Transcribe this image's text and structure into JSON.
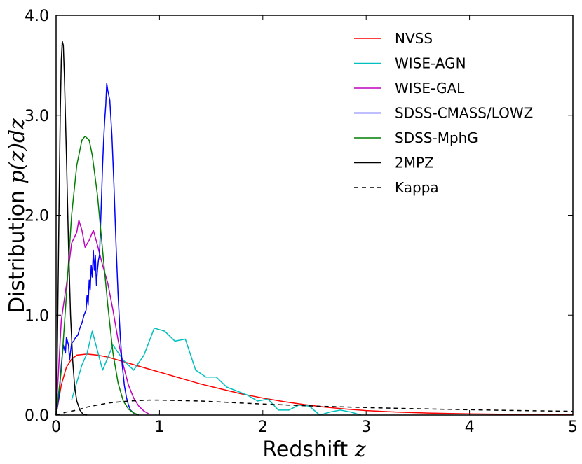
{
  "chart_data": {
    "type": "line",
    "title": "",
    "xlabel": "Redshift",
    "xlabel_var": "z",
    "ylabel": "Distribution",
    "ylabel_math": "p(z)dz",
    "xlim": [
      0,
      5
    ],
    "ylim": [
      0,
      4.0
    ],
    "xticks": [
      "0",
      "1",
      "2",
      "3",
      "4",
      "5"
    ],
    "xtick_values": [
      0,
      1,
      2,
      3,
      4,
      5
    ],
    "yticks": [
      "0.0",
      "1.0",
      "2.0",
      "3.0",
      "4.0"
    ],
    "ytick_values": [
      0,
      1,
      2,
      3,
      4
    ],
    "grid": false,
    "legend_position": "top-right",
    "series": [
      {
        "name": "NVSS",
        "color": "#ff0000",
        "dash": "solid",
        "points": [
          [
            0,
            0
          ],
          [
            0.05,
            0.3
          ],
          [
            0.1,
            0.48
          ],
          [
            0.15,
            0.56
          ],
          [
            0.2,
            0.6
          ],
          [
            0.3,
            0.61
          ],
          [
            0.4,
            0.6
          ],
          [
            0.5,
            0.58
          ],
          [
            0.6,
            0.55
          ],
          [
            0.7,
            0.52
          ],
          [
            0.8,
            0.49
          ],
          [
            1.0,
            0.43
          ],
          [
            1.2,
            0.37
          ],
          [
            1.4,
            0.31
          ],
          [
            1.6,
            0.26
          ],
          [
            1.8,
            0.21
          ],
          [
            2.0,
            0.17
          ],
          [
            2.2,
            0.135
          ],
          [
            2.4,
            0.105
          ],
          [
            2.6,
            0.08
          ],
          [
            2.8,
            0.06
          ],
          [
            3.0,
            0.045
          ],
          [
            3.3,
            0.03
          ],
          [
            3.6,
            0.02
          ],
          [
            4.0,
            0.012
          ],
          [
            4.5,
            0.006
          ],
          [
            5.0,
            0.003
          ]
        ]
      },
      {
        "name": "WISE-AGN",
        "color": "#00bfbf",
        "dash": "solid",
        "points": [
          [
            0.15,
            0.15
          ],
          [
            0.25,
            0.5
          ],
          [
            0.3,
            0.62
          ],
          [
            0.35,
            0.84
          ],
          [
            0.45,
            0.45
          ],
          [
            0.55,
            0.7
          ],
          [
            0.65,
            0.55
          ],
          [
            0.75,
            0.45
          ],
          [
            0.85,
            0.6
          ],
          [
            0.95,
            0.87
          ],
          [
            1.05,
            0.84
          ],
          [
            1.15,
            0.74
          ],
          [
            1.25,
            0.76
          ],
          [
            1.35,
            0.45
          ],
          [
            1.45,
            0.38
          ],
          [
            1.55,
            0.38
          ],
          [
            1.65,
            0.28
          ],
          [
            1.75,
            0.24
          ],
          [
            1.85,
            0.2
          ],
          [
            1.95,
            0.14
          ],
          [
            2.05,
            0.16
          ],
          [
            2.15,
            0.05
          ],
          [
            2.25,
            0.05
          ],
          [
            2.35,
            0.1
          ],
          [
            2.45,
            0.09
          ],
          [
            2.55,
            0.0
          ],
          [
            2.65,
            0.03
          ],
          [
            2.75,
            0.05
          ],
          [
            2.85,
            0.03
          ],
          [
            2.95,
            0.0
          ]
        ]
      },
      {
        "name": "WISE-GAL",
        "color": "#bf00bf",
        "dash": "solid",
        "points": [
          [
            0.0,
            0.0
          ],
          [
            0.05,
            0.95
          ],
          [
            0.1,
            1.3
          ],
          [
            0.15,
            1.72
          ],
          [
            0.2,
            1.83
          ],
          [
            0.22,
            1.95
          ],
          [
            0.25,
            1.85
          ],
          [
            0.28,
            1.68
          ],
          [
            0.32,
            1.75
          ],
          [
            0.36,
            1.85
          ],
          [
            0.4,
            1.7
          ],
          [
            0.45,
            1.5
          ],
          [
            0.5,
            1.32
          ],
          [
            0.55,
            1.05
          ],
          [
            0.6,
            0.75
          ],
          [
            0.65,
            0.5
          ],
          [
            0.7,
            0.3
          ],
          [
            0.75,
            0.17
          ],
          [
            0.8,
            0.09
          ],
          [
            0.85,
            0.04
          ],
          [
            0.9,
            0.01
          ]
        ]
      },
      {
        "name": "SDSS-CMASS/LOWZ",
        "color": "#0000ff",
        "dash": "solid",
        "points": [
          [
            0.0,
            0.0
          ],
          [
            0.03,
            0.2
          ],
          [
            0.05,
            0.5
          ],
          [
            0.07,
            0.7
          ],
          [
            0.09,
            0.62
          ],
          [
            0.1,
            0.78
          ],
          [
            0.12,
            0.7
          ],
          [
            0.13,
            0.55
          ],
          [
            0.15,
            0.72
          ],
          [
            0.17,
            0.74
          ],
          [
            0.19,
            0.78
          ],
          [
            0.21,
            0.8
          ],
          [
            0.23,
            0.87
          ],
          [
            0.25,
            0.92
          ],
          [
            0.27,
            1.0
          ],
          [
            0.29,
            1.05
          ],
          [
            0.3,
            1.2
          ],
          [
            0.31,
            1.1
          ],
          [
            0.32,
            1.35
          ],
          [
            0.33,
            1.25
          ],
          [
            0.34,
            1.5
          ],
          [
            0.35,
            1.38
          ],
          [
            0.36,
            1.65
          ],
          [
            0.37,
            1.45
          ],
          [
            0.38,
            1.6
          ],
          [
            0.39,
            1.3
          ],
          [
            0.4,
            1.45
          ],
          [
            0.41,
            1.55
          ],
          [
            0.42,
            1.6
          ],
          [
            0.43,
            1.9
          ],
          [
            0.44,
            2.2
          ],
          [
            0.45,
            2.5
          ],
          [
            0.46,
            2.75
          ],
          [
            0.47,
            2.95
          ],
          [
            0.48,
            3.1
          ],
          [
            0.49,
            3.32
          ],
          [
            0.5,
            3.25
          ],
          [
            0.52,
            3.15
          ],
          [
            0.54,
            2.8
          ],
          [
            0.56,
            2.3
          ],
          [
            0.58,
            1.7
          ],
          [
            0.6,
            1.2
          ],
          [
            0.62,
            0.8
          ],
          [
            0.64,
            0.5
          ],
          [
            0.66,
            0.3
          ],
          [
            0.68,
            0.18
          ],
          [
            0.7,
            0.1
          ],
          [
            0.72,
            0.05
          ],
          [
            0.75,
            0.02
          ],
          [
            0.8,
            0.0
          ]
        ]
      },
      {
        "name": "SDSS-MphG",
        "color": "#007f00",
        "dash": "solid",
        "points": [
          [
            0.0,
            0.0
          ],
          [
            0.05,
            0.45
          ],
          [
            0.1,
            1.2
          ],
          [
            0.15,
            2.0
          ],
          [
            0.2,
            2.5
          ],
          [
            0.25,
            2.75
          ],
          [
            0.28,
            2.79
          ],
          [
            0.32,
            2.75
          ],
          [
            0.35,
            2.6
          ],
          [
            0.4,
            2.2
          ],
          [
            0.45,
            1.65
          ],
          [
            0.5,
            1.1
          ],
          [
            0.55,
            0.62
          ],
          [
            0.6,
            0.32
          ],
          [
            0.65,
            0.14
          ],
          [
            0.7,
            0.06
          ],
          [
            0.75,
            0.02
          ],
          [
            0.8,
            0.0
          ]
        ]
      },
      {
        "name": "2MPZ",
        "color": "#000000",
        "dash": "solid",
        "points": [
          [
            0.0,
            0.0
          ],
          [
            0.01,
            0.5
          ],
          [
            0.02,
            1.3
          ],
          [
            0.03,
            2.2
          ],
          [
            0.04,
            3.0
          ],
          [
            0.05,
            3.55
          ],
          [
            0.06,
            3.74
          ],
          [
            0.07,
            3.7
          ],
          [
            0.08,
            3.4
          ],
          [
            0.1,
            2.6
          ],
          [
            0.12,
            1.7
          ],
          [
            0.14,
            1.0
          ],
          [
            0.16,
            0.55
          ],
          [
            0.18,
            0.28
          ],
          [
            0.2,
            0.14
          ],
          [
            0.23,
            0.05
          ],
          [
            0.26,
            0.01
          ],
          [
            0.3,
            0.0
          ]
        ]
      },
      {
        "name": "Kappa",
        "color": "#000000",
        "dash": "dashed",
        "points": [
          [
            0.0,
            0.0
          ],
          [
            0.1,
            0.03
          ],
          [
            0.2,
            0.05
          ],
          [
            0.3,
            0.08
          ],
          [
            0.4,
            0.1
          ],
          [
            0.5,
            0.12
          ],
          [
            0.6,
            0.13
          ],
          [
            0.7,
            0.14
          ],
          [
            0.8,
            0.145
          ],
          [
            0.9,
            0.15
          ],
          [
            1.0,
            0.15
          ],
          [
            1.2,
            0.145
          ],
          [
            1.4,
            0.14
          ],
          [
            1.6,
            0.13
          ],
          [
            1.8,
            0.12
          ],
          [
            2.0,
            0.11
          ],
          [
            2.5,
            0.09
          ],
          [
            3.0,
            0.075
          ],
          [
            3.5,
            0.063
          ],
          [
            4.0,
            0.053
          ],
          [
            4.5,
            0.045
          ],
          [
            5.0,
            0.038
          ]
        ]
      }
    ]
  }
}
